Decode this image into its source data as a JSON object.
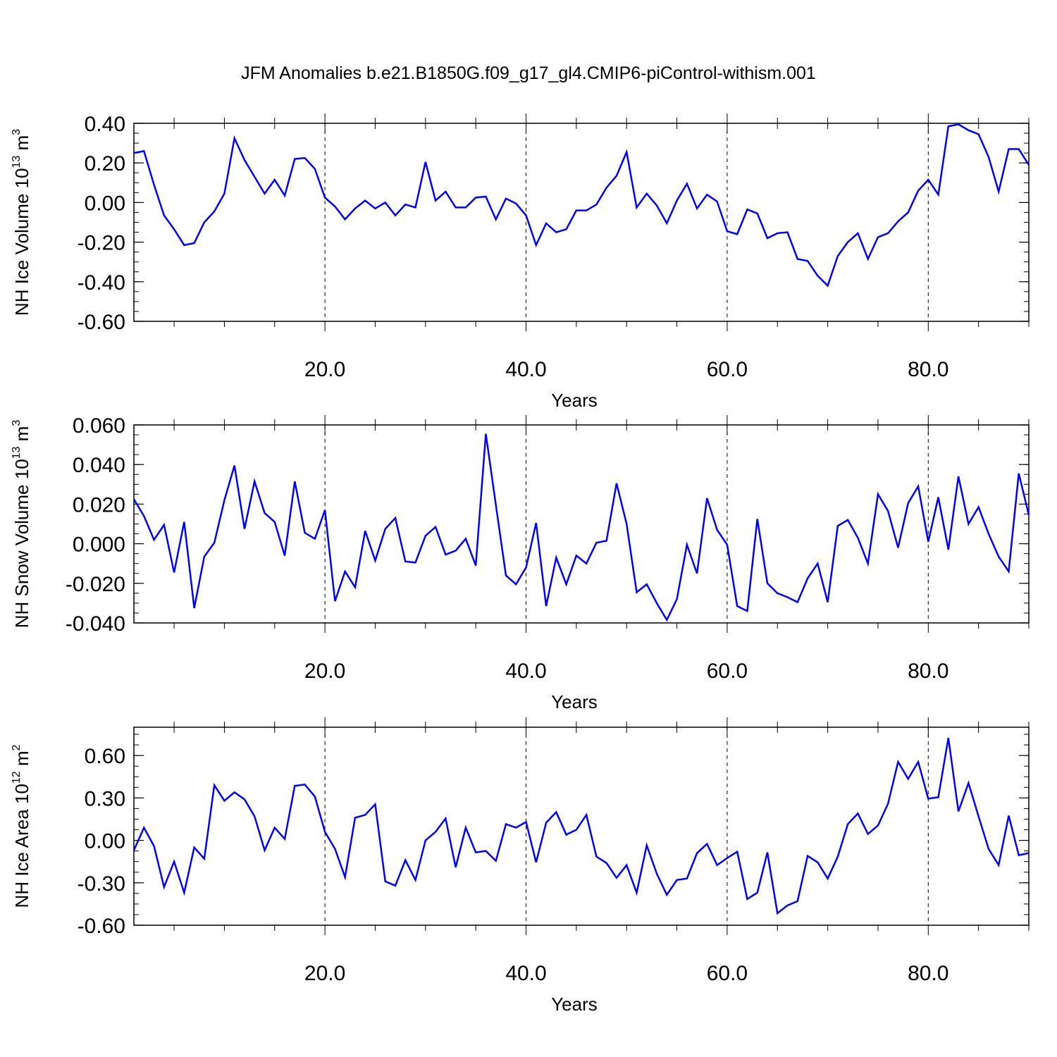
{
  "title": "JFM Anomalies b.e21.B1850G.f09_g17_gl4.CMIP6-piControl-withism.001",
  "colors": {
    "line": "#0000ff",
    "axis": "#000000",
    "grid": "#000000"
  },
  "chart_data": [
    {
      "type": "line",
      "ylabel": "NH Ice Volume 10",
      "ylabel_exp": "13",
      "ylabel_unit": " m",
      "ylabel_unit_exp": "3",
      "xlabel": "Years",
      "xlim": [
        1,
        90
      ],
      "ylim": [
        -0.6,
        0.4
      ],
      "yticks": [
        0.4,
        0.2,
        0.0,
        -0.2,
        -0.4,
        -0.6
      ],
      "ytick_labels": [
        "0.40",
        "0.20",
        "0.00",
        "-0.20",
        "-0.40",
        "-0.60"
      ],
      "xticks": [
        20,
        40,
        60,
        80
      ],
      "xtick_labels": [
        "20.0",
        "40.0",
        "60.0",
        "80.0"
      ],
      "grid": "vertical dashed",
      "series": [
        {
          "values": [
            0.25,
            0.26,
            0.09,
            -0.065,
            -0.135,
            -0.215,
            -0.205,
            -0.1,
            -0.045,
            0.045,
            0.325,
            0.215,
            0.13,
            0.045,
            0.115,
            0.035,
            0.22,
            0.225,
            0.17,
            0.025,
            -0.02,
            -0.085,
            -0.03,
            0.01,
            -0.03,
            0.0,
            -0.065,
            -0.01,
            -0.025,
            0.205,
            0.01,
            0.055,
            -0.025,
            -0.025,
            0.025,
            0.03,
            -0.085,
            0.02,
            -0.005,
            -0.065,
            -0.215,
            -0.105,
            -0.15,
            -0.135,
            -0.04,
            -0.04,
            -0.01,
            0.075,
            0.135,
            0.255,
            -0.025,
            0.045,
            -0.015,
            -0.105,
            0.01,
            0.095,
            -0.03,
            0.04,
            0.005,
            -0.145,
            -0.16,
            -0.035,
            -0.055,
            -0.18,
            -0.155,
            -0.15,
            -0.285,
            -0.295,
            -0.37,
            -0.42,
            -0.27,
            -0.2,
            -0.155,
            -0.285,
            -0.175,
            -0.155,
            -0.095,
            -0.05,
            0.06,
            0.115,
            0.04,
            0.385,
            0.395,
            0.365,
            0.345,
            0.23,
            0.055,
            0.27,
            0.27,
            0.19
          ]
        }
      ]
    },
    {
      "type": "line",
      "ylabel": "NH Snow Volume 10",
      "ylabel_exp": "13",
      "ylabel_unit": " m",
      "ylabel_unit_exp": "3",
      "xlabel": "Years",
      "xlim": [
        1,
        90
      ],
      "ylim": [
        -0.04,
        0.06
      ],
      "yticks": [
        0.06,
        0.04,
        0.02,
        0.0,
        -0.02,
        -0.04
      ],
      "ytick_labels": [
        "0.060",
        "0.040",
        "0.020",
        "0.000",
        "-0.020",
        "-0.040"
      ],
      "xticks": [
        20,
        40,
        60,
        80
      ],
      "xtick_labels": [
        "20.0",
        "40.0",
        "60.0",
        "80.0"
      ],
      "grid": "vertical dashed",
      "series": [
        {
          "values": [
            0.0225,
            0.014,
            0.002,
            0.0095,
            -0.0145,
            0.011,
            -0.0325,
            -0.0065,
            0.0005,
            0.022,
            0.0395,
            0.0075,
            0.0315,
            0.0155,
            0.011,
            -0.006,
            0.0315,
            0.0055,
            0.0025,
            0.017,
            -0.029,
            -0.014,
            -0.022,
            0.0065,
            -0.0085,
            0.0075,
            0.013,
            -0.009,
            -0.0095,
            0.004,
            0.0085,
            -0.0055,
            -0.0035,
            0.0025,
            -0.011,
            0.0555,
            0.0195,
            -0.016,
            -0.0205,
            -0.012,
            0.0105,
            -0.0315,
            -0.007,
            -0.0205,
            -0.006,
            -0.01,
            0.0005,
            0.0015,
            0.0305,
            0.01,
            -0.0245,
            -0.0205,
            -0.03,
            -0.0385,
            -0.028,
            -0.0005,
            -0.015,
            0.023,
            0.007,
            -0.0005,
            -0.0315,
            -0.034,
            0.0125,
            -0.02,
            -0.025,
            -0.027,
            -0.0295,
            -0.0175,
            -0.01,
            -0.0295,
            0.009,
            0.012,
            0.003,
            -0.01,
            0.025,
            0.0165,
            -0.002,
            0.0205,
            0.029,
            0.001,
            0.0235,
            -0.003,
            0.034,
            0.01,
            0.0185,
            0.005,
            -0.0065,
            -0.014,
            0.0355,
            0.0145
          ]
        }
      ]
    },
    {
      "type": "line",
      "ylabel": "NH Ice Area 10",
      "ylabel_exp": "12",
      "ylabel_unit": " m",
      "ylabel_unit_exp": "2",
      "xlabel": "Years",
      "xlim": [
        1,
        90
      ],
      "ylim": [
        -0.6,
        0.8
      ],
      "yticks": [
        0.6,
        0.3,
        0.0,
        -0.3,
        -0.6
      ],
      "ytick_labels": [
        "0.60",
        "0.30",
        "0.00",
        "-0.30",
        "-0.60"
      ],
      "xticks": [
        20,
        40,
        60,
        80
      ],
      "xtick_labels": [
        "20.0",
        "40.0",
        "60.0",
        "80.0"
      ],
      "grid": "vertical dashed",
      "series": [
        {
          "values": [
            -0.07,
            0.09,
            -0.04,
            -0.33,
            -0.15,
            -0.37,
            -0.05,
            -0.13,
            0.39,
            0.28,
            0.34,
            0.29,
            0.17,
            -0.07,
            0.09,
            0.01,
            0.385,
            0.395,
            0.31,
            0.06,
            -0.06,
            -0.26,
            0.16,
            0.18,
            0.255,
            -0.29,
            -0.32,
            -0.14,
            -0.28,
            0.0,
            0.06,
            0.155,
            -0.19,
            0.09,
            -0.085,
            -0.075,
            -0.145,
            0.115,
            0.09,
            0.13,
            -0.155,
            0.125,
            0.2,
            0.04,
            0.075,
            0.18,
            -0.115,
            -0.16,
            -0.265,
            -0.175,
            -0.37,
            -0.035,
            -0.235,
            -0.385,
            -0.28,
            -0.27,
            -0.09,
            -0.025,
            -0.175,
            -0.125,
            -0.08,
            -0.415,
            -0.37,
            -0.085,
            -0.515,
            -0.46,
            -0.43,
            -0.11,
            -0.155,
            -0.27,
            -0.115,
            0.115,
            0.19,
            0.045,
            0.105,
            0.26,
            0.555,
            0.435,
            0.555,
            0.295,
            0.305,
            0.725,
            0.205,
            0.405,
            0.17,
            -0.06,
            -0.175,
            0.175,
            -0.105,
            -0.09
          ]
        }
      ]
    }
  ]
}
